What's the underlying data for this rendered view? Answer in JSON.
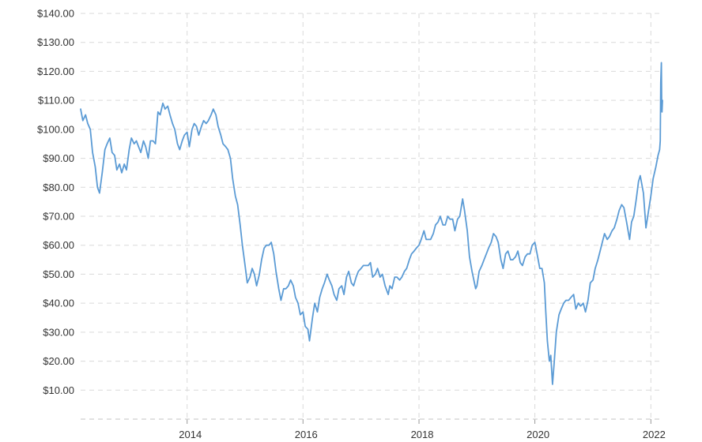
{
  "chart_data": {
    "type": "line",
    "title": "",
    "xlabel": "",
    "ylabel": "",
    "ylim": [
      0,
      140
    ],
    "xlim": [
      "2012-03-01",
      "2022-03-15"
    ],
    "grid": true,
    "y_ticks": [
      {
        "value": 10,
        "label": "$10.00"
      },
      {
        "value": 20,
        "label": "$20.00"
      },
      {
        "value": 30,
        "label": "$30.00"
      },
      {
        "value": 40,
        "label": "$40.00"
      },
      {
        "value": 50,
        "label": "$50.00"
      },
      {
        "value": 60,
        "label": "$60.00"
      },
      {
        "value": 70,
        "label": "$70.00"
      },
      {
        "value": 80,
        "label": "$80.00"
      },
      {
        "value": 90,
        "label": "$90.00"
      },
      {
        "value": 100,
        "label": "$100.00"
      },
      {
        "value": 110,
        "label": "$110.00"
      },
      {
        "value": 120,
        "label": "$120.00"
      },
      {
        "value": 130,
        "label": "$130.00"
      },
      {
        "value": 140,
        "label": "$140.00"
      }
    ],
    "x_ticks": [
      {
        "value": "2014-01-01",
        "label": "2014"
      },
      {
        "value": "2016-01-01",
        "label": "2016"
      },
      {
        "value": "2018-01-01",
        "label": "2018"
      },
      {
        "value": "2020-01-01",
        "label": "2020"
      },
      {
        "value": "2022-01-01",
        "label": "2022"
      }
    ],
    "series": [
      {
        "color": "#5b9bd5",
        "x": [
          "2012-03-01",
          "2012-03-15",
          "2012-04-01",
          "2012-04-15",
          "2012-05-01",
          "2012-05-15",
          "2012-06-01",
          "2012-06-15",
          "2012-06-28",
          "2012-07-15",
          "2012-08-01",
          "2012-08-15",
          "2012-09-01",
          "2012-09-15",
          "2012-10-01",
          "2012-10-15",
          "2012-11-01",
          "2012-11-15",
          "2012-12-01",
          "2012-12-15",
          "2013-01-01",
          "2013-01-15",
          "2013-02-01",
          "2013-02-15",
          "2013-03-01",
          "2013-03-15",
          "2013-04-01",
          "2013-04-15",
          "2013-05-01",
          "2013-05-15",
          "2013-06-01",
          "2013-06-15",
          "2013-07-01",
          "2013-07-15",
          "2013-08-01",
          "2013-08-15",
          "2013-09-01",
          "2013-09-15",
          "2013-10-01",
          "2013-10-15",
          "2013-11-01",
          "2013-11-15",
          "2013-12-01",
          "2013-12-15",
          "2014-01-01",
          "2014-01-15",
          "2014-02-01",
          "2014-02-15",
          "2014-03-01",
          "2014-03-15",
          "2014-04-01",
          "2014-04-15",
          "2014-05-01",
          "2014-05-15",
          "2014-06-01",
          "2014-06-15",
          "2014-07-01",
          "2014-07-15",
          "2014-08-01",
          "2014-08-15",
          "2014-09-01",
          "2014-09-15",
          "2014-10-01",
          "2014-10-15",
          "2014-11-01",
          "2014-11-15",
          "2014-12-01",
          "2014-12-15",
          "2015-01-01",
          "2015-01-15",
          "2015-02-01",
          "2015-02-15",
          "2015-03-01",
          "2015-03-15",
          "2015-04-01",
          "2015-04-15",
          "2015-05-01",
          "2015-05-15",
          "2015-06-01",
          "2015-06-15",
          "2015-07-01",
          "2015-07-15",
          "2015-08-01",
          "2015-08-15",
          "2015-09-01",
          "2015-09-15",
          "2015-10-01",
          "2015-10-15",
          "2015-11-01",
          "2015-11-15",
          "2015-12-01",
          "2015-12-15",
          "2016-01-01",
          "2016-01-15",
          "2016-02-01",
          "2016-02-11",
          "2016-03-01",
          "2016-03-15",
          "2016-04-01",
          "2016-04-15",
          "2016-05-01",
          "2016-05-15",
          "2016-06-01",
          "2016-06-15",
          "2016-07-01",
          "2016-07-15",
          "2016-08-01",
          "2016-08-15",
          "2016-09-01",
          "2016-09-15",
          "2016-10-01",
          "2016-10-15",
          "2016-11-01",
          "2016-11-15",
          "2016-12-01",
          "2016-12-15",
          "2017-01-01",
          "2017-01-15",
          "2017-02-01",
          "2017-02-15",
          "2017-03-01",
          "2017-03-15",
          "2017-04-01",
          "2017-04-15",
          "2017-05-01",
          "2017-05-15",
          "2017-06-01",
          "2017-06-21",
          "2017-07-01",
          "2017-07-15",
          "2017-08-01",
          "2017-08-15",
          "2017-09-01",
          "2017-09-15",
          "2017-10-01",
          "2017-10-15",
          "2017-11-01",
          "2017-11-15",
          "2017-12-01",
          "2017-12-15",
          "2018-01-01",
          "2018-01-15",
          "2018-02-01",
          "2018-02-15",
          "2018-03-01",
          "2018-03-15",
          "2018-04-01",
          "2018-04-15",
          "2018-05-01",
          "2018-05-15",
          "2018-06-01",
          "2018-06-15",
          "2018-07-01",
          "2018-07-15",
          "2018-08-01",
          "2018-08-15",
          "2018-09-01",
          "2018-09-15",
          "2018-10-03",
          "2018-10-15",
          "2018-11-01",
          "2018-11-15",
          "2018-12-01",
          "2018-12-24",
          "2019-01-01",
          "2019-01-15",
          "2019-02-01",
          "2019-02-15",
          "2019-03-01",
          "2019-03-15",
          "2019-04-01",
          "2019-04-15",
          "2019-05-01",
          "2019-05-15",
          "2019-06-01",
          "2019-06-15",
          "2019-07-01",
          "2019-07-15",
          "2019-08-01",
          "2019-08-15",
          "2019-09-01",
          "2019-09-16",
          "2019-10-01",
          "2019-10-15",
          "2019-11-01",
          "2019-11-15",
          "2019-12-01",
          "2019-12-15",
          "2020-01-01",
          "2020-01-15",
          "2020-02-01",
          "2020-02-15",
          "2020-03-01",
          "2020-03-10",
          "2020-03-20",
          "2020-04-01",
          "2020-04-10",
          "2020-04-21",
          "2020-05-01",
          "2020-05-15",
          "2020-06-01",
          "2020-06-15",
          "2020-07-01",
          "2020-07-15",
          "2020-08-01",
          "2020-08-15",
          "2020-09-01",
          "2020-09-15",
          "2020-10-01",
          "2020-10-15",
          "2020-11-01",
          "2020-11-15",
          "2020-12-01",
          "2020-12-15",
          "2021-01-01",
          "2021-01-15",
          "2021-02-01",
          "2021-02-15",
          "2021-03-01",
          "2021-03-15",
          "2021-04-01",
          "2021-04-15",
          "2021-05-01",
          "2021-05-15",
          "2021-06-01",
          "2021-06-15",
          "2021-07-01",
          "2021-07-15",
          "2021-08-01",
          "2021-08-20",
          "2021-09-01",
          "2021-09-15",
          "2021-10-01",
          "2021-10-15",
          "2021-10-26",
          "2021-11-15",
          "2021-12-01",
          "2021-12-15",
          "2022-01-01",
          "2022-01-15",
          "2022-02-01",
          "2022-02-15",
          "2022-02-25",
          "2022-03-01",
          "2022-03-04",
          "2022-03-08",
          "2022-03-10",
          "2022-03-12",
          "2022-03-15"
        ],
        "y": [
          107,
          103,
          105,
          102,
          100,
          92,
          87,
          80,
          78,
          85,
          93,
          95,
          97,
          92,
          91,
          86,
          88,
          85,
          88,
          86,
          93,
          97,
          95,
          96,
          94,
          92,
          96,
          94,
          90,
          96,
          96,
          95,
          106,
          105,
          109,
          107,
          108,
          105,
          102,
          100,
          95,
          93,
          96,
          98,
          99,
          94,
          100,
          102,
          101,
          98,
          101,
          103,
          102,
          103,
          105,
          107,
          105,
          101,
          98,
          95,
          94,
          93,
          90,
          83,
          77,
          74,
          67,
          60,
          53,
          47,
          49,
          52,
          50,
          46,
          50,
          55,
          59,
          60,
          60,
          61,
          57,
          51,
          45,
          41,
          45,
          45,
          46,
          48,
          46,
          42,
          40,
          36,
          37,
          32,
          31,
          27,
          35,
          40,
          37,
          42,
          45,
          47,
          50,
          48,
          46,
          43,
          41,
          45,
          46,
          43,
          49,
          51,
          47,
          46,
          49,
          51,
          52,
          53,
          53,
          53,
          54,
          49,
          50,
          52,
          49,
          50,
          46,
          43,
          46,
          45,
          49,
          49,
          48,
          49,
          51,
          52,
          55,
          57,
          58,
          59,
          60,
          62,
          65,
          62,
          62,
          62,
          64,
          67,
          68,
          70,
          67,
          67,
          70,
          69,
          69,
          65,
          69,
          70,
          76,
          72,
          65,
          56,
          51,
          45,
          46,
          51,
          53,
          55,
          57,
          59,
          61,
          64,
          63,
          61,
          55,
          52,
          57,
          58,
          55,
          55,
          56,
          58,
          54,
          53,
          56,
          57,
          57,
          60,
          61,
          57,
          52,
          52,
          47,
          37,
          27,
          20,
          22,
          12,
          19,
          30,
          36,
          38,
          40,
          41,
          41,
          42,
          43,
          38,
          40,
          39,
          40,
          37,
          41,
          47,
          48,
          52,
          55,
          58,
          61,
          64,
          62,
          63,
          65,
          66,
          69,
          72,
          74,
          73,
          68,
          62,
          68,
          70,
          76,
          82,
          84,
          78,
          66,
          71,
          77,
          83,
          87,
          91,
          93,
          96,
          116,
          123,
          109,
          106,
          110
        ]
      }
    ]
  }
}
